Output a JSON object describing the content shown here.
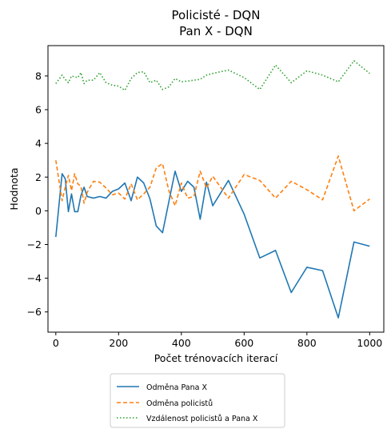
{
  "chart_data": {
    "type": "line",
    "title_lines": [
      "Policisté - DQN",
      "Pan X - DQN"
    ],
    "xlabel": "Počet trénovacích iterací",
    "ylabel": "Hodnota",
    "xlim": [
      -25,
      1045
    ],
    "ylim": [
      -7.2,
      9.8
    ],
    "xticks": [
      0,
      200,
      400,
      600,
      800,
      1000
    ],
    "yticks": [
      -6,
      -4,
      -2,
      0,
      2,
      4,
      6,
      8
    ],
    "grid": false,
    "legend_position": "below-center",
    "series": [
      {
        "name": "Odměna Pana X",
        "color": "#1f77b4",
        "dash": "solid",
        "x": [
          0,
          20,
          30,
          40,
          50,
          60,
          70,
          80,
          90,
          100,
          120,
          140,
          160,
          180,
          200,
          220,
          240,
          260,
          280,
          300,
          320,
          340,
          380,
          400,
          420,
          440,
          460,
          480,
          500,
          550,
          600,
          650,
          700,
          750,
          800,
          850,
          900,
          950,
          1000
        ],
        "y": [
          -1.55,
          2.2,
          1.9,
          -0.05,
          1.0,
          -0.05,
          -0.05,
          0.9,
          1.4,
          0.85,
          0.75,
          0.85,
          0.75,
          1.15,
          1.3,
          1.65,
          0.6,
          2.0,
          1.65,
          0.7,
          -0.9,
          -1.3,
          2.35,
          1.15,
          1.75,
          1.4,
          -0.5,
          1.7,
          0.3,
          1.8,
          -0.2,
          -2.8,
          -2.35,
          -4.85,
          -3.35,
          -3.55,
          -6.35,
          -1.85,
          -2.1
        ]
      },
      {
        "name": "Odměna policistů",
        "color": "#ff7f0e",
        "dash": "dashed",
        "x": [
          0,
          20,
          30,
          40,
          50,
          60,
          70,
          80,
          90,
          100,
          120,
          140,
          160,
          180,
          200,
          220,
          240,
          260,
          280,
          300,
          320,
          340,
          360,
          380,
          400,
          420,
          440,
          460,
          480,
          500,
          550,
          600,
          650,
          700,
          750,
          800,
          850,
          900,
          950,
          1000
        ],
        "y": [
          3.0,
          0.6,
          1.4,
          2.1,
          1.2,
          2.2,
          1.6,
          1.45,
          0.45,
          1.1,
          1.75,
          1.7,
          1.35,
          0.95,
          1.05,
          0.7,
          1.6,
          0.65,
          1.0,
          1.4,
          2.55,
          2.8,
          1.2,
          0.3,
          1.65,
          0.75,
          0.85,
          2.35,
          1.35,
          2.05,
          0.75,
          2.15,
          1.8,
          0.75,
          1.75,
          1.25,
          0.65,
          3.25,
          0.0,
          0.7
        ]
      },
      {
        "name": "Vzdálenost policistů a Pana X",
        "color": "#2ca02c",
        "dash": "dotted",
        "x": [
          0,
          20,
          30,
          40,
          50,
          60,
          70,
          80,
          90,
          100,
          120,
          140,
          160,
          180,
          200,
          220,
          240,
          260,
          280,
          300,
          320,
          340,
          360,
          380,
          400,
          420,
          440,
          460,
          480,
          500,
          550,
          600,
          650,
          700,
          750,
          800,
          850,
          900,
          950,
          1000
        ],
        "y": [
          7.55,
          8.05,
          7.8,
          7.6,
          8.0,
          7.95,
          7.9,
          8.2,
          7.55,
          7.75,
          7.75,
          8.2,
          7.6,
          7.45,
          7.4,
          7.15,
          7.85,
          8.2,
          8.25,
          7.6,
          7.75,
          7.2,
          7.35,
          7.85,
          7.65,
          7.7,
          7.75,
          7.8,
          8.05,
          8.15,
          8.35,
          7.9,
          7.2,
          8.65,
          7.6,
          8.3,
          8.05,
          7.65,
          8.9,
          8.15
        ]
      }
    ]
  }
}
